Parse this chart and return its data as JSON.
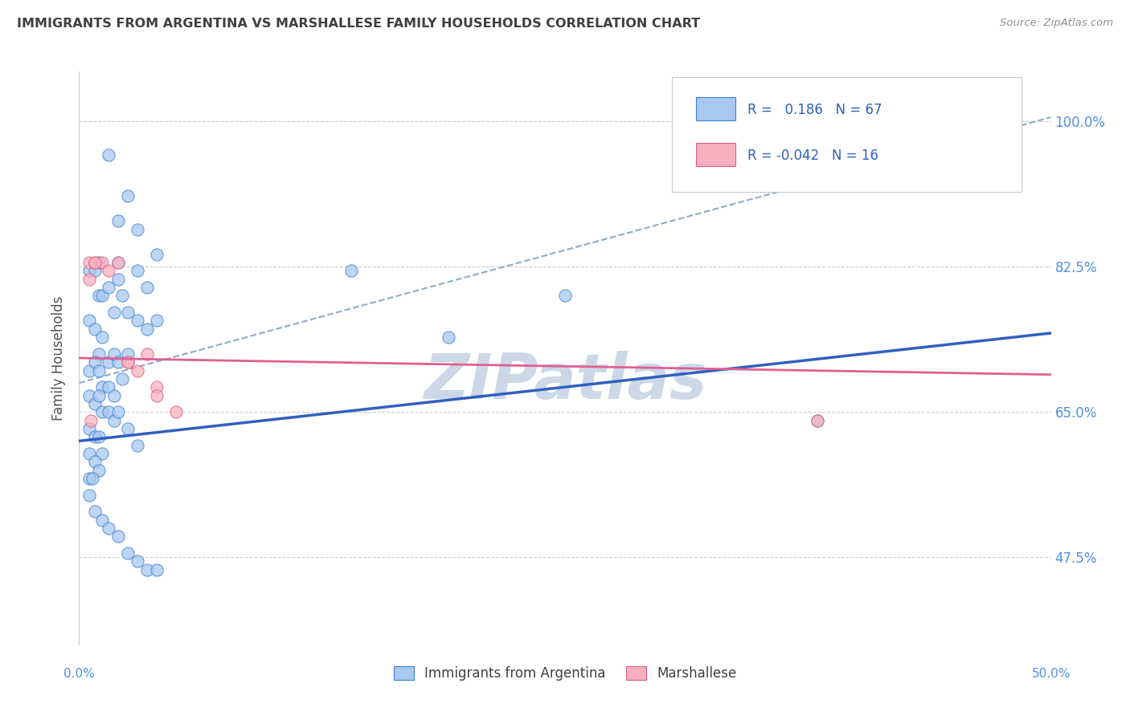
{
  "title": "IMMIGRANTS FROM ARGENTINA VS MARSHALLESE FAMILY HOUSEHOLDS CORRELATION CHART",
  "source": "Source: ZipAtlas.com",
  "ylabel": "Family Households",
  "xlabel_label_blue": "Immigrants from Argentina",
  "xlabel_label_pink": "Marshallese",
  "legend_text_blue": "R =   0.186   N = 67",
  "legend_text_pink": "R = -0.042   N = 16",
  "ytick_labels": [
    "47.5%",
    "65.0%",
    "82.5%",
    "100.0%"
  ],
  "ytick_values": [
    0.475,
    0.65,
    0.825,
    1.0
  ],
  "xlim": [
    0.0,
    0.5
  ],
  "ylim": [
    0.37,
    1.06
  ],
  "blue_fill": "#a8c8f0",
  "blue_edge": "#4080d0",
  "pink_fill": "#f8b0c0",
  "pink_edge": "#e06080",
  "blue_line_color": "#3060c0",
  "pink_line_color": "#e06090",
  "dashed_line_color": "#90a8cc",
  "watermark_color": "#ccd8e8",
  "grid_color": "#cccccc",
  "title_color": "#404040",
  "source_color": "#909090",
  "axis_color": "#5090e0",
  "blue_scatter_x": [
    0.015,
    0.025,
    0.02,
    0.03,
    0.04,
    0.02,
    0.03,
    0.035,
    0.025,
    0.03,
    0.035,
    0.04,
    0.005,
    0.008,
    0.01,
    0.01,
    0.012,
    0.015,
    0.018,
    0.02,
    0.022,
    0.025,
    0.005,
    0.008,
    0.01,
    0.012,
    0.015,
    0.018,
    0.02,
    0.022,
    0.005,
    0.008,
    0.01,
    0.012,
    0.015,
    0.018,
    0.005,
    0.008,
    0.01,
    0.012,
    0.015,
    0.018,
    0.02,
    0.025,
    0.03,
    0.005,
    0.008,
    0.01,
    0.012,
    0.005,
    0.008,
    0.01,
    0.005,
    0.007,
    0.14,
    0.19,
    0.25,
    0.38,
    0.005,
    0.008,
    0.012,
    0.015,
    0.02,
    0.025,
    0.03,
    0.035,
    0.04
  ],
  "blue_scatter_y": [
    0.96,
    0.91,
    0.88,
    0.87,
    0.84,
    0.81,
    0.82,
    0.8,
    0.77,
    0.76,
    0.75,
    0.76,
    0.82,
    0.82,
    0.79,
    0.83,
    0.79,
    0.8,
    0.77,
    0.83,
    0.79,
    0.72,
    0.76,
    0.75,
    0.72,
    0.74,
    0.71,
    0.72,
    0.71,
    0.69,
    0.7,
    0.71,
    0.7,
    0.68,
    0.68,
    0.67,
    0.67,
    0.66,
    0.67,
    0.65,
    0.65,
    0.64,
    0.65,
    0.63,
    0.61,
    0.63,
    0.62,
    0.62,
    0.6,
    0.6,
    0.59,
    0.58,
    0.57,
    0.57,
    0.82,
    0.74,
    0.79,
    0.64,
    0.55,
    0.53,
    0.52,
    0.51,
    0.5,
    0.48,
    0.47,
    0.46,
    0.46
  ],
  "pink_scatter_x": [
    0.005,
    0.005,
    0.008,
    0.012,
    0.02,
    0.025,
    0.03,
    0.035,
    0.04,
    0.008,
    0.015,
    0.025,
    0.04,
    0.05,
    0.38,
    0.006
  ],
  "pink_scatter_y": [
    0.83,
    0.81,
    0.83,
    0.83,
    0.83,
    0.71,
    0.7,
    0.72,
    0.68,
    0.83,
    0.82,
    0.71,
    0.67,
    0.65,
    0.64,
    0.64
  ],
  "blue_line_x": [
    0.0,
    0.5
  ],
  "blue_line_y": [
    0.615,
    0.745
  ],
  "pink_line_x": [
    0.0,
    0.5
  ],
  "pink_line_y": [
    0.715,
    0.695
  ],
  "dashed_line_x": [
    0.0,
    0.5
  ],
  "dashed_line_y": [
    0.685,
    1.005
  ]
}
